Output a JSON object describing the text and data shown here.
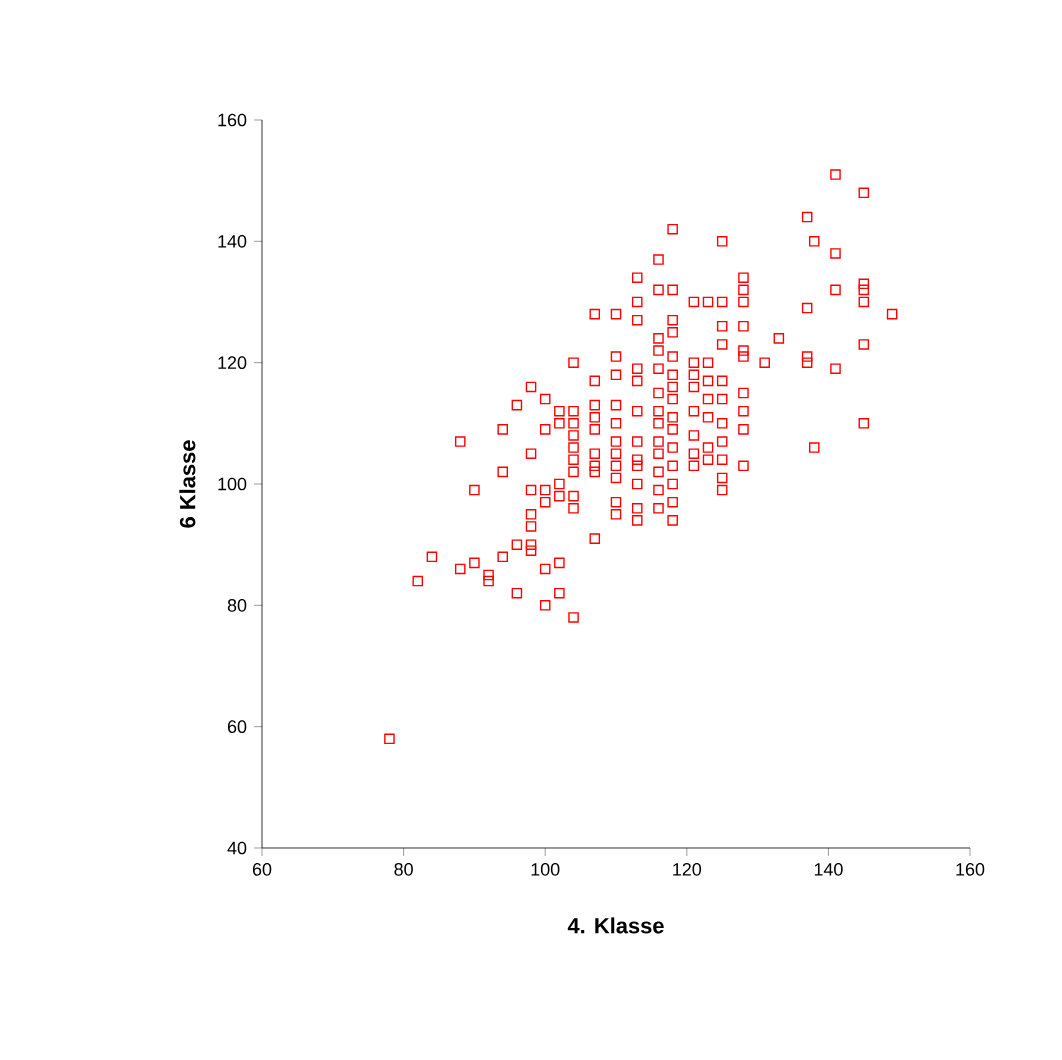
{
  "chart_data": {
    "type": "scatter",
    "xlabel": "4. Klasse",
    "ylabel": "6 Klasse",
    "xlim": [
      60,
      160
    ],
    "ylim": [
      40,
      160
    ],
    "xticks": [
      60,
      80,
      100,
      120,
      140,
      160
    ],
    "yticks": [
      40,
      60,
      80,
      100,
      120,
      140,
      160
    ],
    "marker": "square",
    "series": [
      {
        "color": "#ff0000",
        "x": [
          78,
          82,
          84,
          88,
          88,
          90,
          90,
          92,
          92,
          94,
          94,
          94,
          96,
          96,
          96,
          98,
          98,
          98,
          98,
          98,
          98,
          98,
          100,
          100,
          100,
          100,
          100,
          100,
          102,
          102,
          102,
          102,
          102,
          102,
          104,
          104,
          104,
          104,
          104,
          104,
          104,
          104,
          104,
          104,
          107,
          107,
          107,
          107,
          107,
          107,
          107,
          107,
          107,
          110,
          110,
          110,
          110,
          110,
          110,
          110,
          110,
          110,
          110,
          110,
          113,
          113,
          113,
          113,
          113,
          113,
          113,
          113,
          113,
          113,
          113,
          113,
          116,
          116,
          116,
          116,
          116,
          116,
          116,
          116,
          116,
          116,
          116,
          116,
          116,
          118,
          118,
          118,
          118,
          118,
          118,
          118,
          118,
          118,
          118,
          118,
          118,
          118,
          118,
          118,
          121,
          121,
          121,
          121,
          121,
          121,
          121,
          121,
          123,
          123,
          123,
          123,
          123,
          123,
          123,
          125,
          125,
          125,
          125,
          125,
          125,
          125,
          125,
          125,
          125,
          125,
          128,
          128,
          128,
          128,
          128,
          128,
          128,
          128,
          128,
          128,
          131,
          133,
          137,
          137,
          137,
          137,
          138,
          138,
          141,
          141,
          141,
          141,
          145,
          145,
          145,
          145,
          145,
          145,
          149
        ],
        "values": [
          58,
          84,
          88,
          107,
          86,
          99,
          87,
          85,
          84,
          109,
          102,
          88,
          113,
          90,
          82,
          116,
          105,
          99,
          95,
          93,
          90,
          89,
          114,
          109,
          99,
          97,
          86,
          80,
          112,
          110,
          100,
          98,
          87,
          82,
          120,
          112,
          110,
          108,
          106,
          104,
          102,
          98,
          96,
          78,
          128,
          117,
          113,
          111,
          109,
          105,
          103,
          102,
          91,
          128,
          121,
          118,
          113,
          110,
          107,
          105,
          103,
          101,
          97,
          95,
          134,
          130,
          127,
          119,
          117,
          112,
          107,
          104,
          103,
          100,
          96,
          94,
          137,
          132,
          124,
          122,
          119,
          115,
          112,
          110,
          107,
          105,
          102,
          99,
          96,
          142,
          132,
          127,
          125,
          121,
          118,
          116,
          114,
          111,
          109,
          106,
          103,
          100,
          97,
          94,
          130,
          120,
          118,
          116,
          112,
          108,
          105,
          103,
          130,
          120,
          117,
          114,
          111,
          106,
          104,
          140,
          130,
          126,
          123,
          117,
          114,
          110,
          107,
          104,
          101,
          99,
          134,
          132,
          130,
          126,
          122,
          121,
          115,
          112,
          109,
          103,
          120,
          124,
          144,
          129,
          121,
          120,
          140,
          106,
          151,
          138,
          132,
          119,
          148,
          133,
          132,
          130,
          123,
          110,
          128
        ]
      }
    ]
  }
}
